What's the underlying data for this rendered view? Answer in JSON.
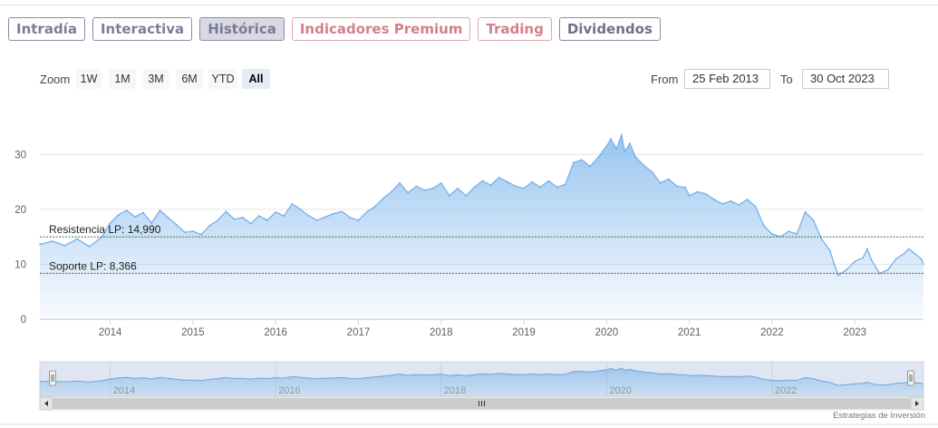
{
  "tabs": [
    {
      "label": "Intradía",
      "style": "blue"
    },
    {
      "label": "Interactiva",
      "style": "blue"
    },
    {
      "label": "Histórica",
      "style": "active"
    },
    {
      "label": "Indicadores Premium",
      "style": "red"
    },
    {
      "label": "Trading",
      "style": "red"
    },
    {
      "label": "Dividendos",
      "style": "blue2"
    }
  ],
  "range_selector": {
    "zoom_label": "Zoom",
    "buttons": [
      "1W",
      "1M",
      "3M",
      "6M",
      "YTD",
      "All"
    ],
    "selected": "All",
    "from_label": "From",
    "from_value": "25 Feb 2013",
    "to_label": "To",
    "to_value": "30 Oct 2023"
  },
  "credit": "Estrategias de Inversión",
  "chart_data": {
    "type": "area",
    "x_start": "2013-02-25",
    "x_end": "2023-10-30",
    "xlim": [
      2013.15,
      2023.83
    ],
    "ylim": [
      0,
      35
    ],
    "y_ticks": [
      0,
      10,
      20,
      30
    ],
    "x_tick_labels": [
      "2014",
      "2015",
      "2016",
      "2017",
      "2018",
      "2019",
      "2020",
      "2021",
      "2022",
      "2023"
    ],
    "grid": true,
    "color": "#7cb5ec",
    "series": [
      {
        "points": [
          [
            2013.15,
            13.6
          ],
          [
            2013.3,
            14.2
          ],
          [
            2013.45,
            13.4
          ],
          [
            2013.6,
            14.6
          ],
          [
            2013.75,
            13.2
          ],
          [
            2013.9,
            15.0
          ],
          [
            2014.0,
            17.5
          ],
          [
            2014.1,
            19.0
          ],
          [
            2014.2,
            19.8
          ],
          [
            2014.3,
            18.6
          ],
          [
            2014.4,
            19.4
          ],
          [
            2014.5,
            17.5
          ],
          [
            2014.6,
            19.8
          ],
          [
            2014.7,
            18.5
          ],
          [
            2014.8,
            17.2
          ],
          [
            2014.9,
            15.8
          ],
          [
            2015.0,
            16.0
          ],
          [
            2015.1,
            15.4
          ],
          [
            2015.2,
            17.0
          ],
          [
            2015.3,
            18.0
          ],
          [
            2015.4,
            19.6
          ],
          [
            2015.5,
            18.2
          ],
          [
            2015.6,
            18.5
          ],
          [
            2015.7,
            17.4
          ],
          [
            2015.8,
            18.8
          ],
          [
            2015.9,
            18.0
          ],
          [
            2016.0,
            19.5
          ],
          [
            2016.1,
            18.8
          ],
          [
            2016.2,
            21.0
          ],
          [
            2016.3,
            20.0
          ],
          [
            2016.4,
            18.8
          ],
          [
            2016.5,
            18.0
          ],
          [
            2016.6,
            18.6
          ],
          [
            2016.7,
            19.2
          ],
          [
            2016.8,
            19.6
          ],
          [
            2016.9,
            18.5
          ],
          [
            2017.0,
            18.0
          ],
          [
            2017.1,
            19.5
          ],
          [
            2017.2,
            20.5
          ],
          [
            2017.3,
            22.0
          ],
          [
            2017.4,
            23.2
          ],
          [
            2017.5,
            24.8
          ],
          [
            2017.6,
            23.0
          ],
          [
            2017.7,
            24.2
          ],
          [
            2017.8,
            23.5
          ],
          [
            2017.9,
            23.8
          ],
          [
            2018.0,
            24.8
          ],
          [
            2018.1,
            22.5
          ],
          [
            2018.2,
            23.8
          ],
          [
            2018.3,
            22.5
          ],
          [
            2018.4,
            24.0
          ],
          [
            2018.5,
            25.2
          ],
          [
            2018.6,
            24.4
          ],
          [
            2018.7,
            25.8
          ],
          [
            2018.8,
            25.0
          ],
          [
            2018.9,
            24.2
          ],
          [
            2019.0,
            23.8
          ],
          [
            2019.1,
            25.0
          ],
          [
            2019.2,
            24.0
          ],
          [
            2019.3,
            25.2
          ],
          [
            2019.4,
            24.0
          ],
          [
            2019.5,
            24.5
          ],
          [
            2019.6,
            28.5
          ],
          [
            2019.7,
            29.0
          ],
          [
            2019.8,
            27.8
          ],
          [
            2019.9,
            29.5
          ],
          [
            2020.0,
            31.5
          ],
          [
            2020.05,
            32.8
          ],
          [
            2020.12,
            31.0
          ],
          [
            2020.18,
            33.5
          ],
          [
            2020.22,
            30.5
          ],
          [
            2020.28,
            32.0
          ],
          [
            2020.35,
            29.5
          ],
          [
            2020.45,
            28.0
          ],
          [
            2020.55,
            26.8
          ],
          [
            2020.65,
            24.8
          ],
          [
            2020.75,
            25.5
          ],
          [
            2020.85,
            24.2
          ],
          [
            2020.95,
            24.0
          ],
          [
            2021.0,
            22.5
          ],
          [
            2021.1,
            23.2
          ],
          [
            2021.2,
            22.8
          ],
          [
            2021.3,
            21.8
          ],
          [
            2021.4,
            21.0
          ],
          [
            2021.5,
            21.5
          ],
          [
            2021.6,
            20.8
          ],
          [
            2021.7,
            21.8
          ],
          [
            2021.8,
            20.5
          ],
          [
            2021.9,
            17.0
          ],
          [
            2022.0,
            15.5
          ],
          [
            2022.1,
            15.0
          ],
          [
            2022.2,
            16.0
          ],
          [
            2022.3,
            15.5
          ],
          [
            2022.4,
            19.5
          ],
          [
            2022.5,
            18.0
          ],
          [
            2022.6,
            14.5
          ],
          [
            2022.7,
            12.5
          ],
          [
            2022.75,
            10.0
          ],
          [
            2022.8,
            8.0
          ],
          [
            2022.9,
            9.0
          ],
          [
            2023.0,
            10.5
          ],
          [
            2023.1,
            11.2
          ],
          [
            2023.15,
            12.8
          ],
          [
            2023.2,
            10.8
          ],
          [
            2023.3,
            8.3
          ],
          [
            2023.4,
            9.0
          ],
          [
            2023.5,
            11.0
          ],
          [
            2023.6,
            12.0
          ],
          [
            2023.65,
            12.8
          ],
          [
            2023.7,
            12.2
          ],
          [
            2023.8,
            11.0
          ],
          [
            2023.83,
            10.0
          ]
        ]
      }
    ],
    "plot_lines": [
      {
        "label": "Resistencia LP: 14,990",
        "value": 14.99,
        "color": "#2e7d32"
      },
      {
        "label": "Soporte LP: 8,366",
        "value": 8.366,
        "color": "#a33a3a"
      }
    ],
    "navigator": {
      "x_tick_labels": [
        "2014",
        "2016",
        "2018",
        "2020",
        "2022"
      ]
    }
  }
}
